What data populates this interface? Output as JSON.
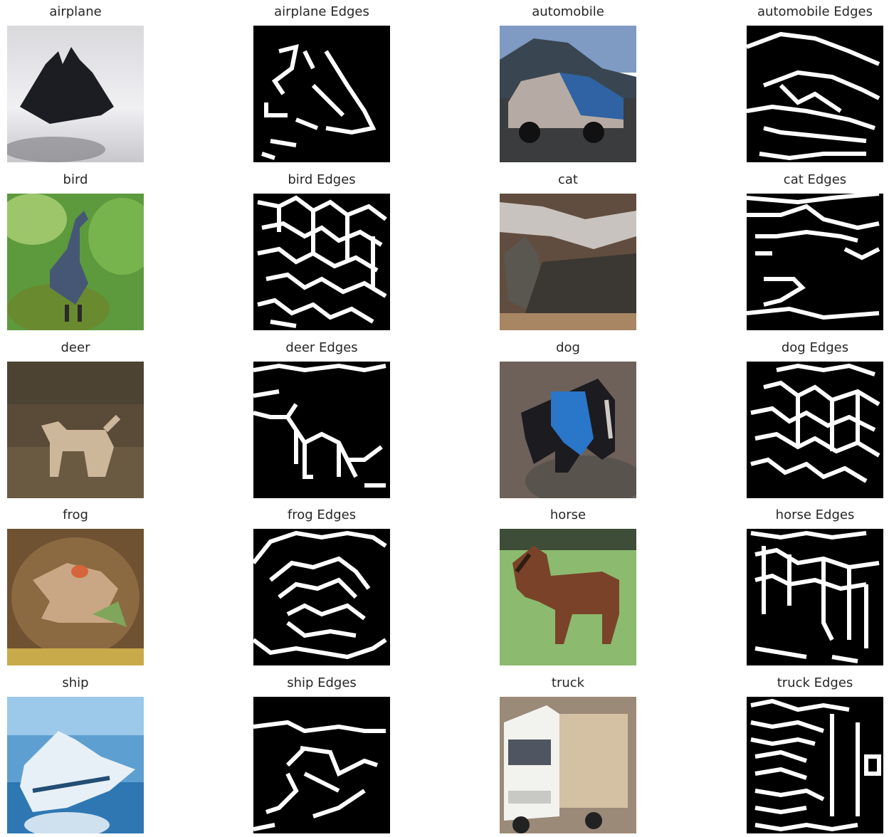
{
  "figure": {
    "panels": [
      {
        "kind": "photo",
        "label": "airplane"
      },
      {
        "kind": "edges",
        "label": "airplane Edges"
      },
      {
        "kind": "photo",
        "label": "automobile"
      },
      {
        "kind": "edges",
        "label": "automobile Edges"
      },
      {
        "kind": "photo",
        "label": "bird"
      },
      {
        "kind": "edges",
        "label": "bird Edges"
      },
      {
        "kind": "photo",
        "label": "cat"
      },
      {
        "kind": "edges",
        "label": "cat Edges"
      },
      {
        "kind": "photo",
        "label": "deer"
      },
      {
        "kind": "edges",
        "label": "deer Edges"
      },
      {
        "kind": "photo",
        "label": "dog"
      },
      {
        "kind": "edges",
        "label": "dog Edges"
      },
      {
        "kind": "photo",
        "label": "frog"
      },
      {
        "kind": "edges",
        "label": "frog Edges"
      },
      {
        "kind": "photo",
        "label": "horse"
      },
      {
        "kind": "edges",
        "label": "horse Edges"
      },
      {
        "kind": "photo",
        "label": "ship"
      },
      {
        "kind": "edges",
        "label": "ship Edges"
      },
      {
        "kind": "photo",
        "label": "truck"
      },
      {
        "kind": "edges",
        "label": "truck Edges"
      }
    ]
  }
}
